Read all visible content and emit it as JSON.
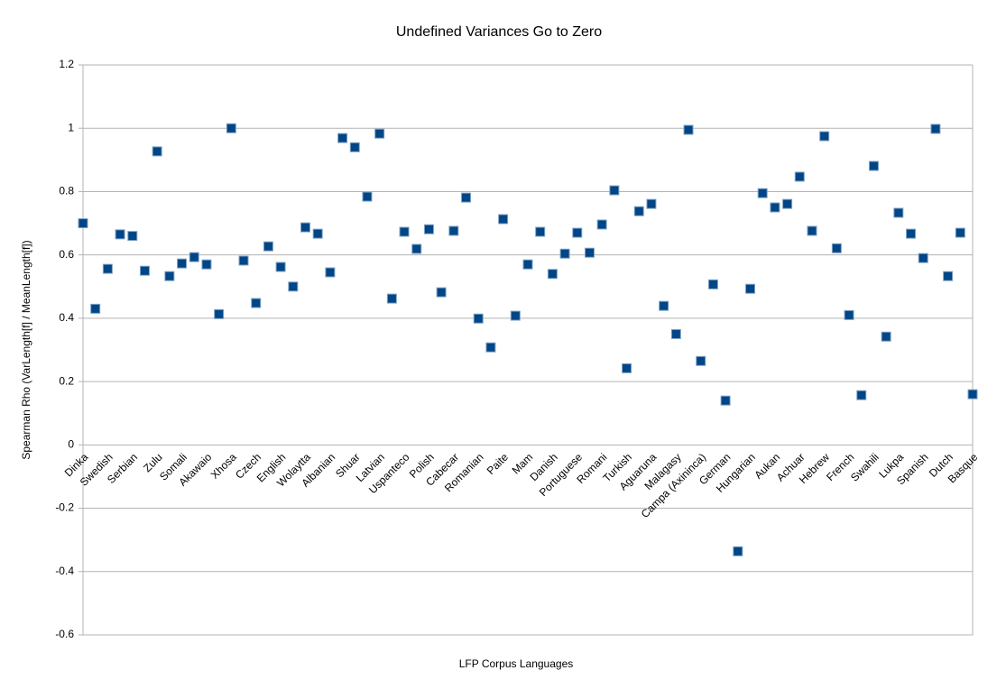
{
  "chart_data": {
    "type": "scatter",
    "title": "Undefined Variances Go to Zero",
    "x_label": "LFP Corpus Languages",
    "y_label": "Spearman Rho (VarLength[f] / MeanLength[f])",
    "categories": [
      "Dinka",
      null,
      "Swedish",
      null,
      "Serbian",
      null,
      "Zulu",
      null,
      "Somali",
      null,
      "Akawaio",
      null,
      "Xhosa",
      null,
      "Czech",
      null,
      "English",
      null,
      "Wolaytta",
      null,
      "Albanian",
      null,
      "Shuar",
      null,
      "Latvian",
      null,
      "Uspanteco",
      null,
      "Polish",
      null,
      "Cabecar",
      null,
      "Romanian",
      null,
      "Paite",
      null,
      "Mam",
      null,
      "Danish",
      null,
      "Portuguese",
      null,
      "Romani",
      null,
      "Turkish",
      null,
      "Aguaruna",
      null,
      "Malagasy",
      null,
      "Campa (Axininca)",
      null,
      "German",
      null,
      "Hungarian",
      null,
      "Aukan",
      null,
      "Achuar",
      null,
      "Hebrew",
      null,
      "French",
      null,
      "Swahili",
      null,
      "Lukpa",
      null,
      "Spanish",
      null,
      "Dutch",
      null,
      "Basque"
    ],
    "values": [
      0.7,
      0.43,
      0.556,
      0.665,
      0.66,
      0.55,
      0.927,
      0.533,
      0.573,
      0.593,
      0.57,
      0.413,
      1.0,
      0.582,
      0.448,
      0.627,
      0.562,
      0.5,
      0.687,
      0.667,
      0.545,
      0.969,
      0.94,
      0.784,
      0.983,
      0.462,
      0.673,
      0.619,
      0.681,
      0.482,
      0.676,
      0.781,
      0.399,
      0.308,
      0.713,
      0.408,
      0.57,
      0.673,
      0.54,
      0.604,
      0.67,
      0.607,
      0.696,
      0.804,
      0.242,
      0.738,
      0.761,
      0.439,
      0.35,
      0.995,
      0.265,
      0.507,
      0.14,
      -0.336,
      0.493,
      0.795,
      0.75,
      0.761,
      0.847,
      0.676,
      0.975,
      0.621,
      0.41,
      0.157,
      0.881,
      0.342,
      0.733,
      0.667,
      0.59,
      0.998,
      0.533,
      0.67,
      0.16
    ],
    "color": "#004586",
    "ylim": [
      -0.6,
      1.2
    ],
    "yticks": [
      -0.6,
      -0.4,
      -0.2,
      0,
      0.2,
      0.4,
      0.6,
      0.8,
      1,
      1.2
    ],
    "grid": true
  }
}
